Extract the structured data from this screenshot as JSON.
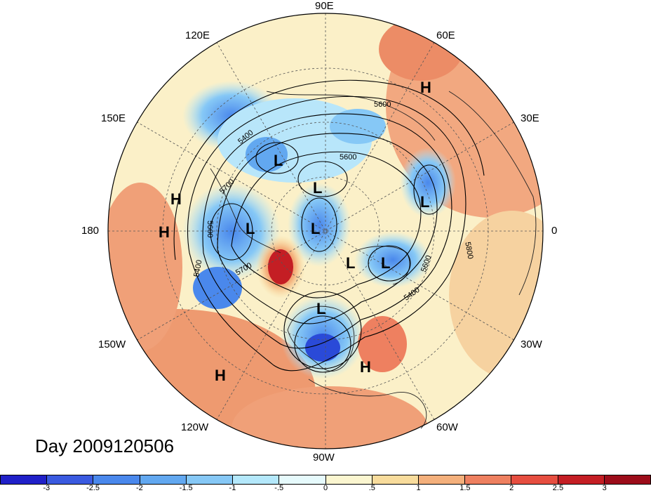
{
  "title": "Day 2009120506",
  "longitude_labels": {
    "lon_90e": "90E",
    "lon_60e": "60E",
    "lon_30e": "30E",
    "lon_0": "0",
    "lon_30w": "30W",
    "lon_60w": "60W",
    "lon_90w": "90W",
    "lon_120w": "120W",
    "lon_150w": "150W",
    "lon_180": "180",
    "lon_150e": "150E",
    "lon_120e": "120E"
  },
  "pressure_centers": [
    {
      "type": "H",
      "label": "H"
    },
    {
      "type": "H",
      "label": "H"
    },
    {
      "type": "H",
      "label": "H"
    },
    {
      "type": "H",
      "label": "H"
    },
    {
      "type": "H",
      "label": "H"
    },
    {
      "type": "L",
      "label": "L"
    },
    {
      "type": "L",
      "label": "L"
    },
    {
      "type": "L",
      "label": "L"
    },
    {
      "type": "L",
      "label": "L"
    },
    {
      "type": "L",
      "label": "L"
    },
    {
      "type": "L",
      "label": "L"
    },
    {
      "type": "L",
      "label": "L"
    },
    {
      "type": "L",
      "label": "L"
    }
  ],
  "contour_labels": [
    "5600",
    "5400",
    "5600",
    "5700",
    "5600",
    "5400",
    "5700",
    "5600",
    "5400",
    "5700",
    "5700",
    "5800"
  ],
  "colorbar": {
    "ticks": [
      "-3",
      "-2.5",
      "-2",
      "-1.5",
      "-1",
      "-.5",
      "0",
      ".5",
      "1",
      "1.5",
      "2",
      "2.5",
      "3"
    ],
    "colors": [
      "#2020c8",
      "#3a5ae0",
      "#4a88ec",
      "#62a8f0",
      "#86c8f6",
      "#b4e8fb",
      "#e6fafc",
      "#fbf6d0",
      "#f8dc9c",
      "#f4b07c",
      "#ee8060",
      "#e64e40",
      "#c41e24",
      "#9c0c1a"
    ]
  }
}
